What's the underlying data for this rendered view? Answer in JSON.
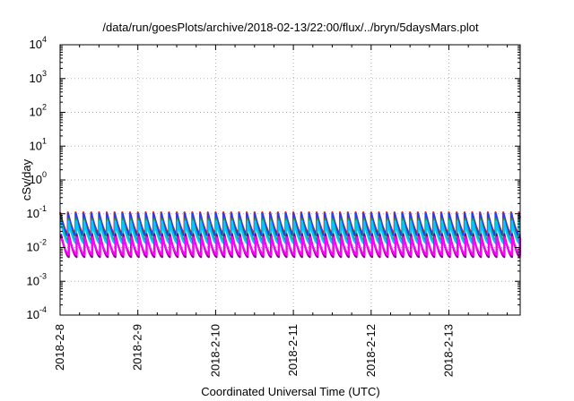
{
  "chart_data": {
    "type": "line",
    "title": "/data/run/goesPlots/archive/2018-02-13/22:00/flux/../bryn/5daysMars.plot",
    "xlabel": "Coordinated Universal Time (UTC)",
    "ylabel": "cSv/day",
    "yscale": "log",
    "ylim": [
      0.0001,
      10000
    ],
    "xlim": [
      "2018-02-08 00:00",
      "2018-02-13 22:00"
    ],
    "grid": true,
    "y_ticks": [
      {
        "base": "10",
        "exp": "4",
        "value": 10000
      },
      {
        "base": "10",
        "exp": "3",
        "value": 1000
      },
      {
        "base": "10",
        "exp": "2",
        "value": 100
      },
      {
        "base": "10",
        "exp": "1",
        "value": 10
      },
      {
        "base": "10",
        "exp": "0",
        "value": 1
      },
      {
        "base": "10",
        "exp": "-1",
        "value": 0.1
      },
      {
        "base": "10",
        "exp": "-2",
        "value": 0.01
      },
      {
        "base": "10",
        "exp": "-3",
        "value": 0.001
      },
      {
        "base": "10",
        "exp": "-4",
        "value": 0.0001
      }
    ],
    "x_ticks": [
      "2018-2-8",
      "2018-2-9",
      "2018-2-10",
      "2018-2-11",
      "2018-2-12",
      "2018-2-13"
    ],
    "sawtooth": {
      "cycles_per_day": 10,
      "series": [
        {
          "color": "#e41a1c",
          "peak": 0.11,
          "trough": 0.026
        },
        {
          "color": "#1f3fff",
          "peak": 0.1,
          "trough": 0.022
        },
        {
          "color": "#1a9e3a",
          "peak": 0.07,
          "trough": 0.016
        },
        {
          "color": "#00c8ff",
          "peak": 0.06,
          "trough": 0.013
        },
        {
          "color": "#8b008b",
          "peak": 0.025,
          "trough": 0.0052
        },
        {
          "color": "#ff00ff",
          "peak": 0.02,
          "trough": 0.006
        }
      ]
    }
  }
}
